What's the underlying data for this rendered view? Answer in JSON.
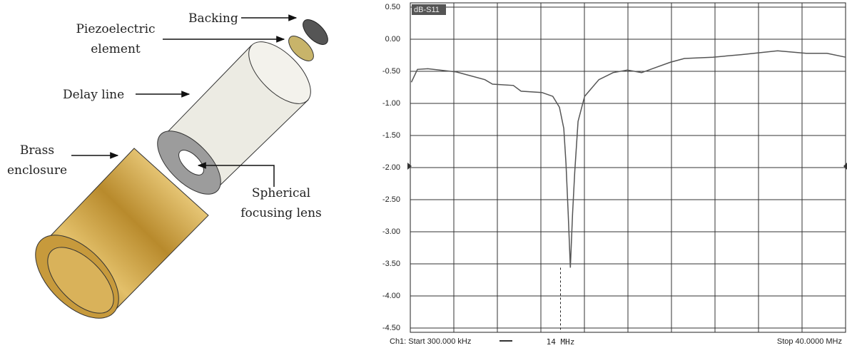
{
  "diagram": {
    "backing": "Backing",
    "piezo": [
      "Piezoelectric",
      "element"
    ],
    "delay_line": "Delay line",
    "brass": [
      "Brass",
      "enclosure"
    ],
    "lens": [
      "Spherical",
      "focusing lens"
    ]
  },
  "chart_data": {
    "type": "line",
    "x": [
      0.4,
      0.95,
      1.9,
      4.5,
      7.1,
      7.8,
      9.7,
      10.4,
      12.3,
      13.3,
      13.9,
      14.3,
      14.5,
      14.7,
      14.9,
      15.1,
      15.3,
      15.6,
      16.2,
      17.5,
      18.8,
      20.1,
      21.4,
      22.7,
      24.0,
      25.3,
      27.9,
      30.5,
      33.8,
      36.4,
      38.3,
      40.0
    ],
    "series": [
      {
        "name": "dB-S11",
        "color": "#555555",
        "values": [
          -0.67,
          -0.47,
          -0.46,
          -0.51,
          -0.63,
          -0.7,
          -0.72,
          -0.81,
          -0.83,
          -0.89,
          -1.06,
          -1.39,
          -1.94,
          -2.72,
          -3.56,
          -2.72,
          -2.06,
          -1.28,
          -0.89,
          -0.63,
          -0.52,
          -0.48,
          -0.52,
          -0.44,
          -0.36,
          -0.3,
          -0.28,
          -0.24,
          -0.18,
          -0.22,
          -0.22,
          -0.28
        ]
      }
    ],
    "xlim": [
      0.3,
      40
    ],
    "ylim": [
      -4.5,
      0.5
    ],
    "yticks": [
      {
        "value": 0.5,
        "label": "0.50"
      },
      {
        "value": 0,
        "label": "0.00"
      },
      {
        "value": -0.5,
        "label": "-0.50"
      },
      {
        "value": -1,
        "label": "-1.00"
      },
      {
        "value": -1.5,
        "label": "-1.50"
      },
      {
        "value": -2,
        "label": "-2.00"
      },
      {
        "value": -2.5,
        "label": "-2.50"
      },
      {
        "value": -3,
        "label": "-3.00"
      },
      {
        "value": -3.5,
        "label": "-3.50"
      },
      {
        "value": -4,
        "label": "-4.00"
      },
      {
        "value": -4.5,
        "label": "-4.50"
      }
    ],
    "grid": true,
    "start_label": "Ch1: Start  300.000 kHz",
    "stop_label": "Stop  40.0000 MHz",
    "marker": {
      "value": 14,
      "label": "14 MHz"
    }
  }
}
